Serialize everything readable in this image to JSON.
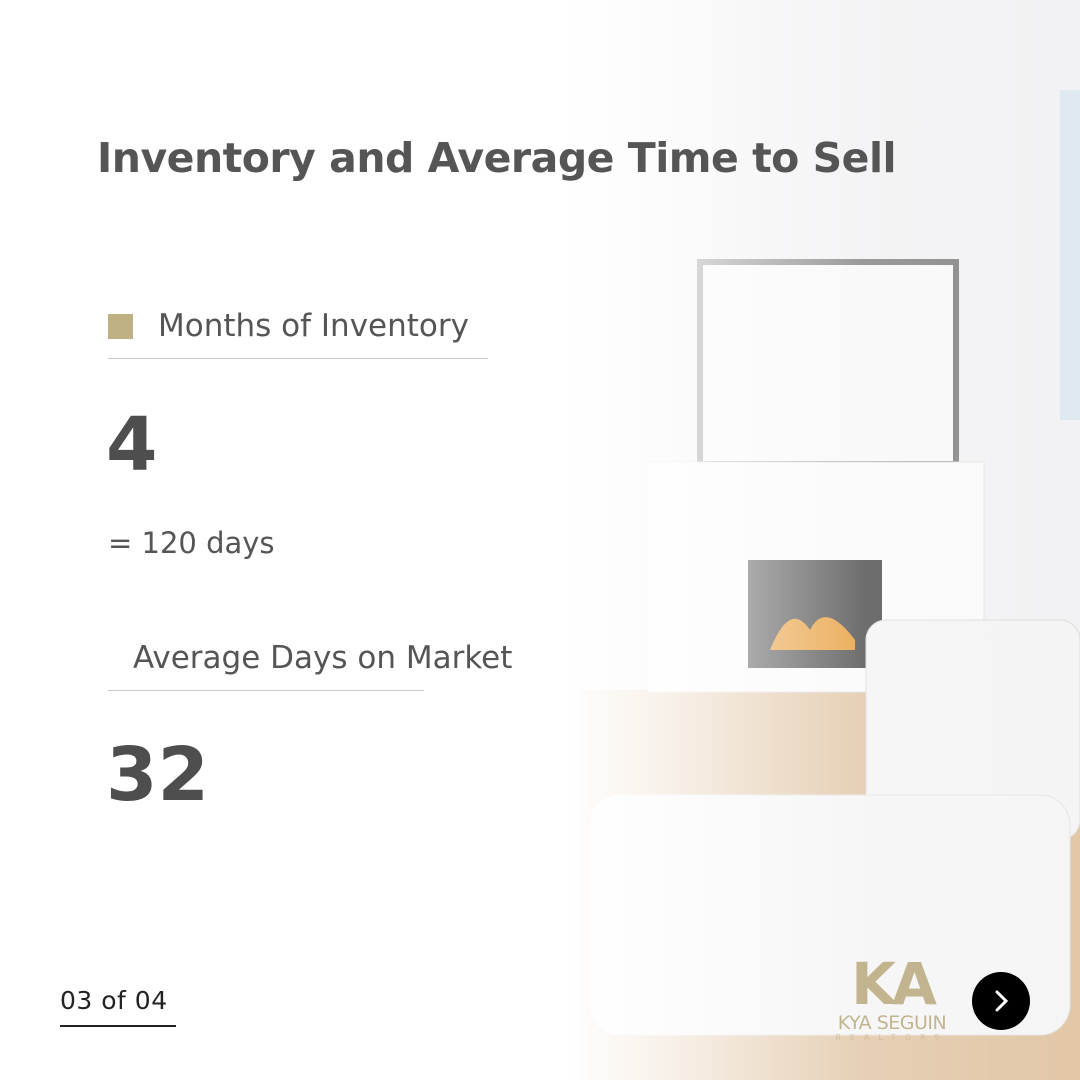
{
  "title": "Inventory and Average Time to Sell",
  "metrics": [
    {
      "label": "Months of Inventory",
      "value": "4",
      "note": "= 120 days"
    },
    {
      "label": "Average Days on Market",
      "value": "32"
    }
  ],
  "pagination": {
    "text": "03 of 04"
  },
  "logo": {
    "mark": "KA",
    "name": "KYA SEGUIN",
    "sub": "REALTORS"
  },
  "colors": {
    "accent": "#bfb084",
    "text": "#4e4e4e",
    "button": "#000000"
  },
  "next_icon": "chevron-right-icon"
}
